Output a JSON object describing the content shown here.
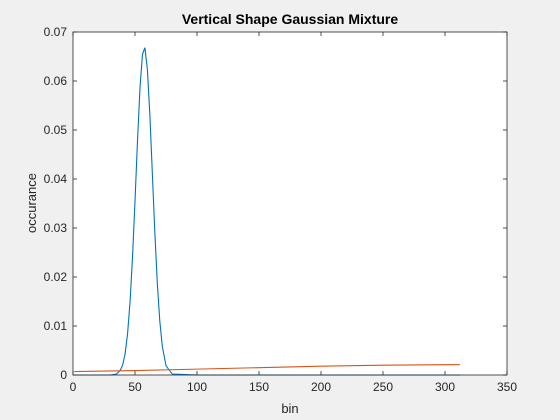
{
  "chart_data": {
    "type": "line",
    "title": "Vertical Shape Gaussian Mixture",
    "xlabel": "bin",
    "ylabel": "occurance",
    "xlim": [
      0,
      350
    ],
    "ylim": [
      0,
      0.07
    ],
    "xticks": [
      0,
      50,
      100,
      150,
      200,
      250,
      300,
      350
    ],
    "yticks": [
      0,
      0.01,
      0.02,
      0.03,
      0.04,
      0.05,
      0.06,
      0.07
    ],
    "xtick_labels": [
      "0",
      "50",
      "100",
      "150",
      "200",
      "250",
      "300",
      "350"
    ],
    "ytick_labels": [
      "0",
      "0.01",
      "0.02",
      "0.03",
      "0.04",
      "0.05",
      "0.06",
      "0.07"
    ],
    "grid": false,
    "series": [
      {
        "color": "#0072bd",
        "x": [
          0,
          30,
          35,
          38,
          40,
          42,
          44,
          46,
          48,
          50,
          52,
          54,
          56,
          58,
          60,
          62,
          64,
          66,
          68,
          70,
          72,
          75,
          80,
          100,
          150,
          200,
          250,
          300,
          312
        ],
        "y": [
          0,
          0.0,
          0.0002,
          0.0009,
          0.002,
          0.0043,
          0.0084,
          0.0149,
          0.0241,
          0.0355,
          0.0477,
          0.0585,
          0.0654,
          0.0668,
          0.0623,
          0.053,
          0.0411,
          0.029,
          0.0187,
          0.011,
          0.0059,
          0.0019,
          0.0002,
          0.0,
          0.0,
          0.0,
          0.0,
          0.0,
          0.0
        ]
      },
      {
        "color": "#d95319",
        "x": [
          1,
          50,
          100,
          150,
          200,
          250,
          300,
          312
        ],
        "y": [
          0.0007,
          0.0009,
          0.0012,
          0.0015,
          0.0018,
          0.002,
          0.0021,
          0.0021
        ]
      }
    ]
  }
}
